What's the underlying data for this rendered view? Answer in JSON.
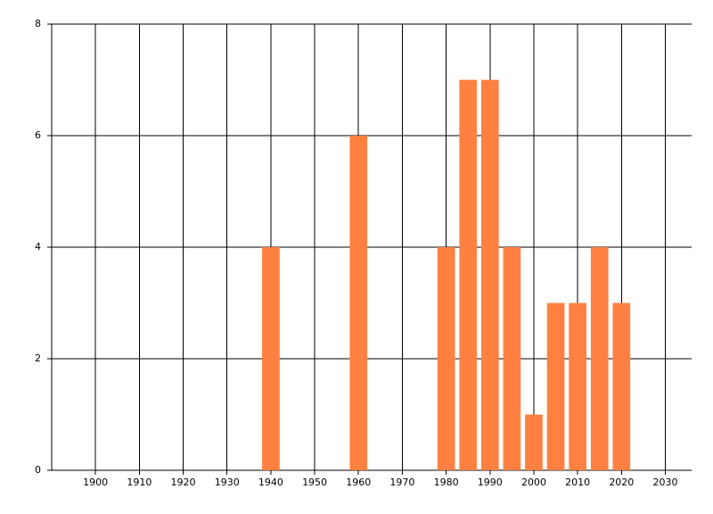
{
  "chart_data": {
    "type": "bar",
    "x": [
      1940,
      1960,
      1980,
      1985,
      1990,
      1995,
      2000,
      2005,
      2010,
      2015,
      2020
    ],
    "values": [
      4,
      6,
      4,
      7,
      7,
      4,
      1,
      3,
      3,
      4,
      3
    ],
    "color": "#ff8040",
    "xlim": [
      1890,
      2036
    ],
    "xticks": [
      1900,
      1910,
      1920,
      1930,
      1940,
      1950,
      1960,
      1970,
      1980,
      1990,
      2000,
      2010,
      2020,
      2030
    ],
    "ylim": [
      0,
      8
    ],
    "yticks": [
      0,
      2,
      4,
      6,
      8
    ],
    "grid": true
  }
}
